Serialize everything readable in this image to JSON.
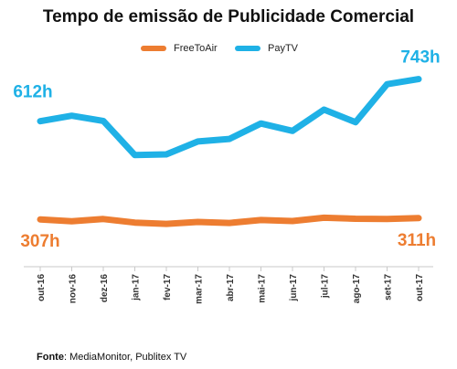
{
  "chart_data": {
    "type": "line",
    "title": "Tempo de emissão de Publicidade Comercial",
    "categories": [
      "out-16",
      "nov-16",
      "dez-16",
      "jan-17",
      "fev-17",
      "mar-17",
      "abr-17",
      "mai-17",
      "jun-17",
      "jul-17",
      "ago-17",
      "set-17",
      "out-17"
    ],
    "series": [
      {
        "name": "FreeToAir",
        "color": "#ED7D31",
        "values": [
          307,
          301,
          308,
          297,
          293,
          299,
          296,
          305,
          302,
          312,
          309,
          308,
          311
        ]
      },
      {
        "name": "PayTV",
        "color": "#1FB1E6",
        "values": [
          612,
          629,
          613,
          507,
          509,
          549,
          557,
          605,
          582,
          648,
          609,
          727,
          743
        ]
      }
    ],
    "data_labels": [
      {
        "series": "PayTV",
        "index": 0,
        "text": "612h"
      },
      {
        "series": "PayTV",
        "index": 12,
        "text": "743h"
      },
      {
        "series": "FreeToAir",
        "index": 0,
        "text": "307h"
      },
      {
        "series": "FreeToAir",
        "index": 12,
        "text": "311h"
      }
    ],
    "ylim": [
      160,
      790
    ],
    "grid": false,
    "legend_position": "top"
  },
  "source": {
    "label": "Fonte",
    "text": ": MediaMonitor, Publitex TV"
  }
}
